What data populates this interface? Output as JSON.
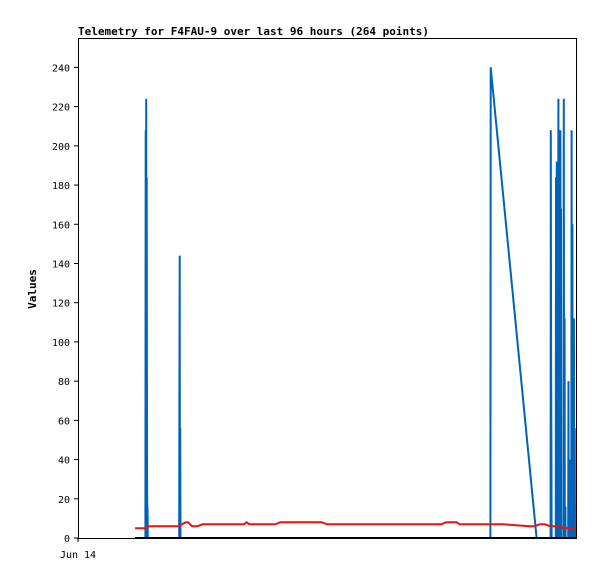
{
  "chart_data": {
    "type": "line",
    "title": "Telemetry for F4FAU-9 over last 96 hours (264 points)",
    "xlabel": "",
    "ylabel": "Values",
    "x_tick_labels": [
      "Jun 14"
    ],
    "x_range_hours": [
      0,
      96
    ],
    "ylim": [
      0,
      255
    ],
    "y_ticks": [
      0,
      20,
      40,
      60,
      80,
      100,
      120,
      140,
      160,
      180,
      200,
      220,
      240
    ],
    "grid": false,
    "colors": {
      "blue": "#0063b8",
      "red": "#e8140f",
      "black": "#000000"
    },
    "series": [
      {
        "color": "#0063b8",
        "points": [
          [
            13.0,
            0
          ],
          [
            13.05,
            208
          ],
          [
            13.1,
            0
          ],
          [
            13.15,
            224
          ],
          [
            13.2,
            0
          ],
          [
            13.25,
            184
          ],
          [
            13.3,
            40
          ],
          [
            13.35,
            0
          ],
          [
            13.4,
            16
          ],
          [
            13.45,
            0
          ],
          [
            19.5,
            0
          ],
          [
            19.55,
            72
          ],
          [
            19.6,
            144
          ],
          [
            19.65,
            0
          ],
          [
            19.7,
            56
          ],
          [
            19.75,
            0
          ],
          [
            79.5,
            0
          ],
          [
            79.55,
            240
          ],
          [
            88.4,
            0
          ],
          [
            91.1,
            0
          ],
          [
            91.15,
            208
          ],
          [
            91.2,
            88
          ],
          [
            91.25,
            48
          ],
          [
            91.3,
            0
          ],
          [
            92.1,
            0
          ],
          [
            92.15,
            184
          ],
          [
            92.2,
            0
          ],
          [
            92.3,
            192
          ],
          [
            92.35,
            0
          ],
          [
            92.45,
            192
          ],
          [
            92.5,
            0
          ],
          [
            92.6,
            224
          ],
          [
            92.65,
            0
          ],
          [
            92.75,
            208
          ],
          [
            92.8,
            0
          ],
          [
            92.85,
            88
          ],
          [
            92.9,
            0
          ],
          [
            93.0,
            208
          ],
          [
            93.05,
            0
          ],
          [
            93.1,
            168
          ],
          [
            93.15,
            0
          ],
          [
            93.6,
            0
          ],
          [
            93.65,
            224
          ],
          [
            93.7,
            0
          ],
          [
            93.8,
            112
          ],
          [
            93.85,
            0
          ],
          [
            93.95,
            16
          ],
          [
            94.0,
            0
          ],
          [
            94.5,
            0
          ],
          [
            94.55,
            80
          ],
          [
            94.6,
            0
          ],
          [
            94.8,
            0
          ],
          [
            94.85,
            40
          ],
          [
            94.9,
            0
          ],
          [
            95.1,
            0
          ],
          [
            95.15,
            208
          ],
          [
            95.2,
            0
          ],
          [
            95.3,
            160
          ],
          [
            95.35,
            0
          ],
          [
            95.45,
            16
          ],
          [
            95.5,
            0
          ],
          [
            95.6,
            112
          ],
          [
            95.65,
            0
          ],
          [
            95.75,
            56
          ],
          [
            95.8,
            0
          ]
        ]
      },
      {
        "color": "#e8140f",
        "points": [
          [
            11.0,
            5
          ],
          [
            13.0,
            5
          ],
          [
            13.2,
            6
          ],
          [
            16.0,
            6
          ],
          [
            18.0,
            6
          ],
          [
            19.5,
            6
          ],
          [
            20.0,
            7
          ],
          [
            20.8,
            8
          ],
          [
            21.2,
            8
          ],
          [
            22.0,
            6
          ],
          [
            23.0,
            6
          ],
          [
            24.0,
            7
          ],
          [
            32.0,
            7
          ],
          [
            32.5,
            8
          ],
          [
            33.0,
            7
          ],
          [
            38.0,
            7
          ],
          [
            39.0,
            8
          ],
          [
            47.0,
            8
          ],
          [
            48.0,
            7
          ],
          [
            70.0,
            7
          ],
          [
            71.0,
            8
          ],
          [
            73.0,
            8
          ],
          [
            73.5,
            7
          ],
          [
            80.0,
            7
          ],
          [
            82.0,
            7
          ],
          [
            87.0,
            6
          ],
          [
            88.0,
            6
          ],
          [
            89.0,
            7
          ],
          [
            90.0,
            7
          ],
          [
            91.0,
            6
          ],
          [
            93.0,
            6
          ],
          [
            93.5,
            5
          ],
          [
            96.0,
            5
          ]
        ]
      },
      {
        "color": "#000000",
        "points": [
          [
            11.0,
            0
          ],
          [
            96.0,
            0
          ]
        ]
      }
    ]
  }
}
